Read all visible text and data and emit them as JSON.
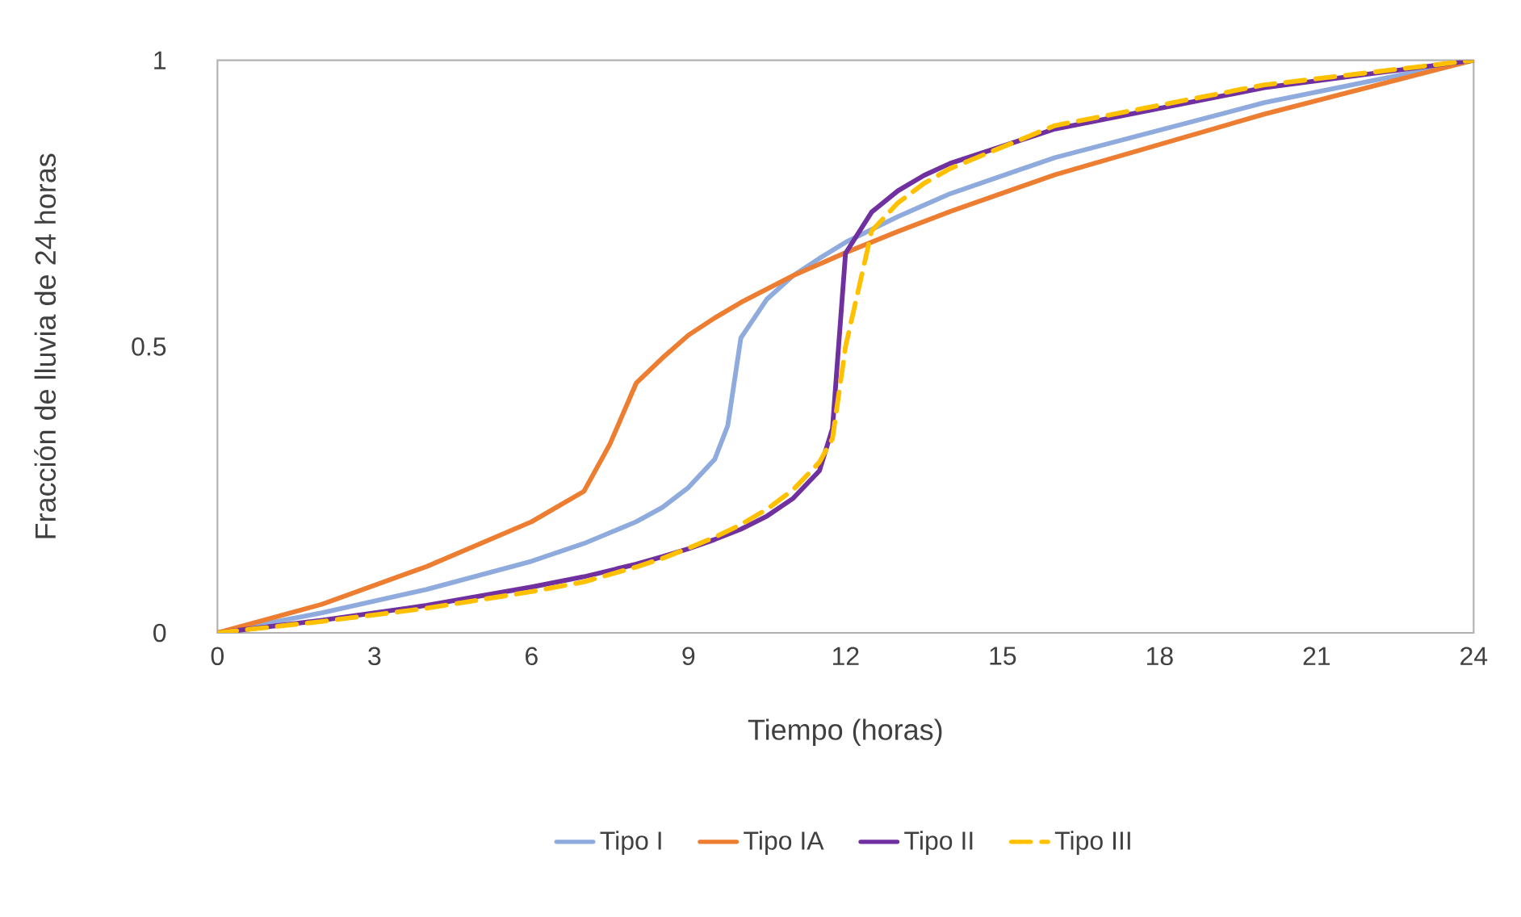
{
  "chart_data": {
    "type": "line",
    "xlabel": "Tiempo (horas)",
    "ylabel": "Fracción de lluvia de 24 horas",
    "xlim": [
      0,
      24
    ],
    "ylim": [
      0,
      1
    ],
    "xticks": [
      0,
      3,
      6,
      9,
      12,
      15,
      18,
      21,
      24
    ],
    "yticks": [
      0,
      0.5,
      1
    ],
    "grid": false,
    "legend": "bottom",
    "marker": "none",
    "series": [
      {
        "name": "Tipo I",
        "color": "#8faadc",
        "line_style": "solid",
        "x": [
          0,
          2,
          4,
          6,
          7,
          8,
          8.5,
          9,
          9.5,
          9.75,
          10,
          10.5,
          11,
          11.5,
          12,
          13,
          14,
          16,
          20,
          24
        ],
        "values": [
          0,
          0.035,
          0.076,
          0.125,
          0.156,
          0.194,
          0.219,
          0.254,
          0.303,
          0.362,
          0.515,
          0.583,
          0.624,
          0.654,
          0.682,
          0.727,
          0.767,
          0.83,
          0.926,
          1
        ]
      },
      {
        "name": "Tipo IA",
        "color": "#ed7d31",
        "line_style": "solid",
        "x": [
          0,
          2,
          4,
          6,
          7,
          7.5,
          8,
          8.5,
          9,
          9.5,
          10,
          11,
          12,
          13,
          14,
          16,
          20,
          24
        ],
        "values": [
          0,
          0.05,
          0.116,
          0.194,
          0.247,
          0.33,
          0.436,
          0.48,
          0.52,
          0.55,
          0.577,
          0.624,
          0.664,
          0.701,
          0.736,
          0.8,
          0.906,
          1
        ]
      },
      {
        "name": "Tipo II",
        "color": "#7030a0",
        "line_style": "solid",
        "x": [
          0,
          2,
          4,
          6,
          7,
          8,
          8.5,
          9,
          9.5,
          10,
          10.5,
          11,
          11.5,
          11.75,
          12,
          12.5,
          13,
          13.5,
          14,
          16,
          20,
          24
        ],
        "values": [
          0,
          0.022,
          0.048,
          0.08,
          0.098,
          0.12,
          0.133,
          0.147,
          0.163,
          0.181,
          0.204,
          0.235,
          0.283,
          0.357,
          0.663,
          0.735,
          0.772,
          0.799,
          0.82,
          0.88,
          0.952,
          1
        ]
      },
      {
        "name": "Tipo III",
        "color": "#ffc000",
        "line_style": "dashed",
        "x": [
          0,
          2,
          4,
          6,
          7,
          8,
          8.5,
          9,
          9.5,
          10,
          10.5,
          11,
          11.5,
          11.75,
          12,
          12.5,
          13,
          13.5,
          14,
          16,
          20,
          24
        ],
        "values": [
          0,
          0.02,
          0.043,
          0.072,
          0.089,
          0.115,
          0.13,
          0.148,
          0.167,
          0.189,
          0.216,
          0.25,
          0.298,
          0.339,
          0.5,
          0.702,
          0.751,
          0.785,
          0.811,
          0.886,
          0.957,
          1
        ]
      }
    ]
  }
}
